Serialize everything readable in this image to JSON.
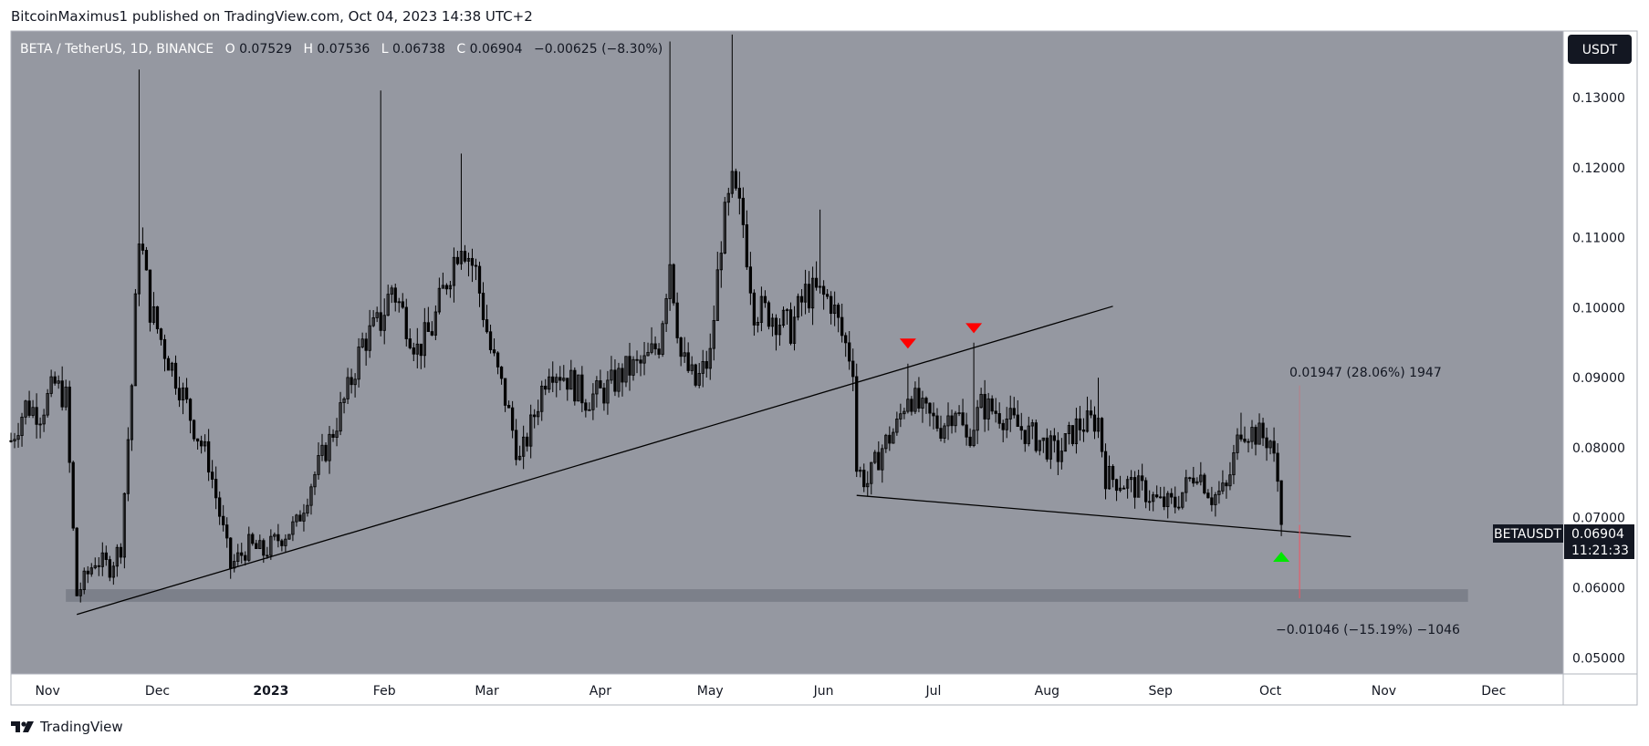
{
  "header": {
    "publisher_line": "BitcoinMaximus1 published on TradingView.com, Oct 04, 2023 14:38 UTC+2"
  },
  "legend": {
    "symbol": "BETA / TetherUS, 1D, BINANCE",
    "open_label": "O",
    "open": "0.07529",
    "high_label": "H",
    "high": "0.07536",
    "low_label": "L",
    "low": "0.06738",
    "close_label": "C",
    "close": "0.06904",
    "change": "−0.00625 (−8.30%)"
  },
  "currency_button": "USDT",
  "price_tag": {
    "symbol": "BETAUSDT",
    "price": "0.06904",
    "countdown": "11:21:33"
  },
  "measure_up": {
    "label": "0.01947 (28.06%) 1947"
  },
  "measure_down": {
    "label": "−0.01046 (−15.19%) −1046"
  },
  "footer": {
    "brand": "TradingView"
  },
  "colors": {
    "plot_bg": "#9598a1",
    "candle": "#000000",
    "arrow_red": "#ff0000",
    "arrow_green": "#00e600",
    "support_band": "#787b86",
    "measure_line": "#f7525f",
    "price_tag_bg": "#131722"
  },
  "chart_data": {
    "type": "candlestick",
    "symbol": "BETAUSDT",
    "interval": "1D",
    "y_ticks": [
      "0.13000",
      "0.12000",
      "0.11000",
      "0.10000",
      "0.09000",
      "0.08000",
      "0.07000",
      "0.06000",
      "0.05000"
    ],
    "y_tick_values": [
      0.13,
      0.12,
      0.11,
      0.1,
      0.09,
      0.08,
      0.07,
      0.06,
      0.05
    ],
    "ylim": [
      0.0477,
      0.1395
    ],
    "x_ticks": [
      {
        "label": "Nov",
        "date": "2022-11-01",
        "bold": false
      },
      {
        "label": "Dec",
        "date": "2022-12-01",
        "bold": false
      },
      {
        "label": "2023",
        "date": "2023-01-01",
        "bold": true
      },
      {
        "label": "Feb",
        "date": "2023-02-01",
        "bold": false
      },
      {
        "label": "Mar",
        "date": "2023-03-01",
        "bold": false
      },
      {
        "label": "Apr",
        "date": "2023-04-01",
        "bold": false
      },
      {
        "label": "May",
        "date": "2023-05-01",
        "bold": false
      },
      {
        "label": "Jun",
        "date": "2023-06-01",
        "bold": false
      },
      {
        "label": "Jul",
        "date": "2023-07-01",
        "bold": false
      },
      {
        "label": "Aug",
        "date": "2023-08-01",
        "bold": false
      },
      {
        "label": "Sep",
        "date": "2023-09-01",
        "bold": false
      },
      {
        "label": "Oct",
        "date": "2023-10-01",
        "bold": false
      },
      {
        "label": "Nov",
        "date": "2023-11-01",
        "bold": false
      },
      {
        "label": "Dec",
        "date": "2023-12-01",
        "bold": false
      }
    ],
    "xlim": [
      "2022-10-22",
      "2023-12-20"
    ],
    "price_path": [
      [
        "2022-10-22",
        0.081
      ],
      [
        "2022-10-26",
        0.086
      ],
      [
        "2022-10-30",
        0.085
      ],
      [
        "2022-11-03",
        0.089
      ],
      [
        "2022-11-06",
        0.087
      ],
      [
        "2022-11-08",
        0.068
      ],
      [
        "2022-11-09",
        0.059
      ],
      [
        "2022-11-14",
        0.064
      ],
      [
        "2022-11-18",
        0.063
      ],
      [
        "2022-11-21",
        0.066
      ],
      [
        "2022-11-24",
        0.089
      ],
      [
        "2022-11-26",
        0.111
      ],
      [
        "2022-11-29",
        0.1
      ],
      [
        "2022-12-03",
        0.094
      ],
      [
        "2022-12-07",
        0.089
      ],
      [
        "2022-12-11",
        0.083
      ],
      [
        "2022-12-15",
        0.078
      ],
      [
        "2022-12-19",
        0.068
      ],
      [
        "2022-12-21",
        0.063
      ],
      [
        "2022-12-26",
        0.066
      ],
      [
        "2022-12-30",
        0.065
      ],
      [
        "2023-01-03",
        0.067
      ],
      [
        "2023-01-08",
        0.069
      ],
      [
        "2023-01-12",
        0.075
      ],
      [
        "2023-01-17",
        0.081
      ],
      [
        "2023-01-22",
        0.088
      ],
      [
        "2023-01-26",
        0.095
      ],
      [
        "2023-01-31",
        0.098
      ],
      [
        "2023-02-03",
        0.103
      ],
      [
        "2023-02-07",
        0.098
      ],
      [
        "2023-02-10",
        0.094
      ],
      [
        "2023-02-14",
        0.097
      ],
      [
        "2023-02-18",
        0.104
      ],
      [
        "2023-02-22",
        0.11
      ],
      [
        "2023-02-26",
        0.105
      ],
      [
        "2023-03-02",
        0.094
      ],
      [
        "2023-03-06",
        0.087
      ],
      [
        "2023-03-10",
        0.078
      ],
      [
        "2023-03-13",
        0.083
      ],
      [
        "2023-03-18",
        0.092
      ],
      [
        "2023-03-23",
        0.09
      ],
      [
        "2023-03-28",
        0.087
      ],
      [
        "2023-04-02",
        0.088
      ],
      [
        "2023-04-08",
        0.091
      ],
      [
        "2023-04-13",
        0.092
      ],
      [
        "2023-04-17",
        0.095
      ],
      [
        "2023-04-20",
        0.107
      ],
      [
        "2023-04-23",
        0.093
      ],
      [
        "2023-04-27",
        0.089
      ],
      [
        "2023-05-01",
        0.093
      ],
      [
        "2023-05-04",
        0.11
      ],
      [
        "2023-05-07",
        0.117
      ],
      [
        "2023-05-10",
        0.112
      ],
      [
        "2023-05-13",
        0.1
      ],
      [
        "2023-05-18",
        0.099
      ],
      [
        "2023-05-23",
        0.097
      ],
      [
        "2023-05-27",
        0.102
      ],
      [
        "2023-05-30",
        0.102
      ],
      [
        "2023-06-03",
        0.101
      ],
      [
        "2023-06-06",
        0.096
      ],
      [
        "2023-06-09",
        0.092
      ],
      [
        "2023-06-10",
        0.077
      ],
      [
        "2023-06-13",
        0.075
      ],
      [
        "2023-06-17",
        0.08
      ],
      [
        "2023-06-21",
        0.083
      ],
      [
        "2023-06-24",
        0.088
      ],
      [
        "2023-06-28",
        0.085
      ],
      [
        "2023-07-03",
        0.083
      ],
      [
        "2023-07-07",
        0.086
      ],
      [
        "2023-07-10",
        0.081
      ],
      [
        "2023-07-14",
        0.086
      ],
      [
        "2023-07-19",
        0.085
      ],
      [
        "2023-07-24",
        0.083
      ],
      [
        "2023-07-30",
        0.081
      ],
      [
        "2023-08-04",
        0.079
      ],
      [
        "2023-08-09",
        0.083
      ],
      [
        "2023-08-15",
        0.084
      ],
      [
        "2023-08-17",
        0.076
      ],
      [
        "2023-08-22",
        0.075
      ],
      [
        "2023-08-27",
        0.074
      ],
      [
        "2023-09-01",
        0.072
      ],
      [
        "2023-09-05",
        0.072
      ],
      [
        "2023-09-11",
        0.077
      ],
      [
        "2023-09-15",
        0.073
      ],
      [
        "2023-09-19",
        0.074
      ],
      [
        "2023-09-23",
        0.083
      ],
      [
        "2023-09-27",
        0.082
      ],
      [
        "2023-10-01",
        0.081
      ],
      [
        "2023-10-03",
        0.07529
      ],
      [
        "2023-10-04",
        0.06904
      ]
    ],
    "wick_spikes": [
      [
        "2022-11-26",
        0.134
      ],
      [
        "2023-01-31",
        0.131
      ],
      [
        "2023-02-22",
        0.122
      ],
      [
        "2023-04-20",
        0.138
      ],
      [
        "2023-05-07",
        0.139
      ],
      [
        "2023-05-31",
        0.114
      ],
      [
        "2023-06-24",
        0.092
      ],
      [
        "2023-07-12",
        0.095
      ],
      [
        "2023-08-15",
        0.09
      ],
      [
        "2023-09-23",
        0.085
      ]
    ],
    "last_candle": {
      "date": "2023-10-04",
      "open": 0.07529,
      "high": 0.07536,
      "low": 0.06738,
      "close": 0.06904
    },
    "trendlines": [
      {
        "name": "ascending-support",
        "from": [
          "2022-11-09",
          0.0562
        ],
        "to": [
          "2023-08-19",
          0.1002
        ]
      },
      {
        "name": "descending-support",
        "from": [
          "2023-06-10",
          0.0732
        ],
        "to": [
          "2023-10-23",
          0.0673
        ]
      }
    ],
    "support_band": {
      "from": "2022-11-06",
      "to": "2023-11-24",
      "y_low": 0.058,
      "y_high": 0.0598
    },
    "markers": [
      {
        "type": "arrow-down",
        "color": "red",
        "date": "2023-06-24",
        "price": 0.0948
      },
      {
        "type": "arrow-down",
        "color": "red",
        "date": "2023-07-12",
        "price": 0.097
      },
      {
        "type": "arrow-up",
        "color": "green",
        "date": "2023-10-04",
        "price": 0.0645
      }
    ],
    "measures": [
      {
        "date": "2023-10-09",
        "from": 0.0694,
        "to": 0.0889,
        "change": 0.01947,
        "pct": 28.06
      },
      {
        "date": "2023-10-09",
        "from": 0.069,
        "to": 0.0585,
        "change": -0.01046,
        "pct": -15.19
      }
    ],
    "last_price": 0.06904,
    "grid": false,
    "legend_position": "top-left"
  }
}
